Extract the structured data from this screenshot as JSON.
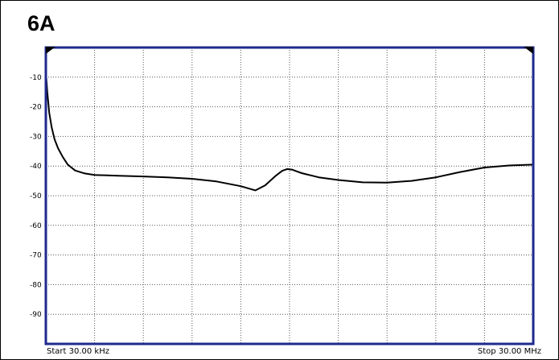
{
  "chart_data": {
    "type": "line",
    "title": "6A",
    "xlabel": "",
    "ylabel": "",
    "x_axis": {
      "start_label": "Start 30.00 kHz",
      "stop_label": "Stop 30.00 MHz",
      "range": [
        0,
        10
      ],
      "divisions": 10
    },
    "y_axis": {
      "ylim": [
        -100,
        0
      ],
      "ticks": [
        -10,
        -20,
        -30,
        -40,
        -50,
        -60,
        -70,
        -80,
        -90
      ],
      "tick_labels": [
        "-10",
        "-20",
        "-30",
        "-40",
        "-50",
        "-60",
        "-70",
        "-80",
        "-90"
      ]
    },
    "grid": true,
    "legend": "none",
    "colors": {
      "plot_border": "#1e2a8c",
      "grid": "#555555",
      "trace": "#000000"
    },
    "series": [
      {
        "x": [
          0.0,
          0.03,
          0.07,
          0.12,
          0.18,
          0.25,
          0.35,
          0.45,
          0.6,
          0.8,
          1.0,
          1.5,
          2.0,
          2.5,
          3.0,
          3.5,
          4.0,
          4.3,
          4.5,
          4.7,
          4.85,
          4.95,
          5.05,
          5.15,
          5.25,
          5.4,
          5.6,
          6.0,
          6.5,
          7.0,
          7.5,
          8.0,
          8.5,
          9.0,
          9.5,
          10.0
        ],
        "y": [
          -8,
          -15,
          -22,
          -27,
          -31,
          -34,
          -37,
          -39.5,
          -41.5,
          -42.5,
          -43,
          -43.3,
          -43.5,
          -43.8,
          -44.3,
          -45.2,
          -46.8,
          -48.2,
          -46.5,
          -43.5,
          -41.6,
          -41,
          -41.2,
          -41.8,
          -42.4,
          -43,
          -43.8,
          -44.7,
          -45.5,
          -45.6,
          -45,
          -43.8,
          -42,
          -40.5,
          -39.8,
          -39.5
        ]
      }
    ]
  }
}
